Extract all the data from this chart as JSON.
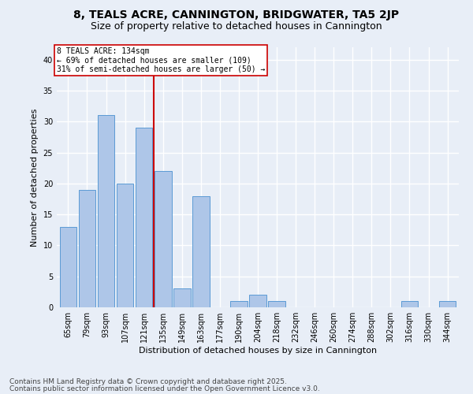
{
  "title1": "8, TEALS ACRE, CANNINGTON, BRIDGWATER, TA5 2JP",
  "title2": "Size of property relative to detached houses in Cannington",
  "xlabel": "Distribution of detached houses by size in Cannington",
  "ylabel": "Number of detached properties",
  "categories": [
    "65sqm",
    "79sqm",
    "93sqm",
    "107sqm",
    "121sqm",
    "135sqm",
    "149sqm",
    "163sqm",
    "177sqm",
    "190sqm",
    "204sqm",
    "218sqm",
    "232sqm",
    "246sqm",
    "260sqm",
    "274sqm",
    "288sqm",
    "302sqm",
    "316sqm",
    "330sqm",
    "344sqm"
  ],
  "values": [
    13,
    19,
    31,
    20,
    29,
    22,
    3,
    18,
    0,
    1,
    2,
    1,
    0,
    0,
    0,
    0,
    0,
    0,
    1,
    0,
    1
  ],
  "bar_color": "#aec6e8",
  "bar_edgecolor": "#5b9bd5",
  "bg_color": "#e8eef7",
  "grid_color": "#ffffff",
  "annotation_text": "8 TEALS ACRE: 134sqm\n← 69% of detached houses are smaller (109)\n31% of semi-detached houses are larger (50) →",
  "annotation_box_color": "#ffffff",
  "annotation_box_edgecolor": "#cc0000",
  "vline_color": "#cc0000",
  "vline_x": 4.5,
  "ylim": [
    0,
    42
  ],
  "yticks": [
    0,
    5,
    10,
    15,
    20,
    25,
    30,
    35,
    40
  ],
  "footer1": "Contains HM Land Registry data © Crown copyright and database right 2025.",
  "footer2": "Contains public sector information licensed under the Open Government Licence v3.0.",
  "title1_fontsize": 10,
  "title2_fontsize": 9,
  "annotation_fontsize": 7,
  "footer_fontsize": 6.5,
  "tick_fontsize": 7,
  "label_fontsize": 8,
  "ylabel_fontsize": 8
}
